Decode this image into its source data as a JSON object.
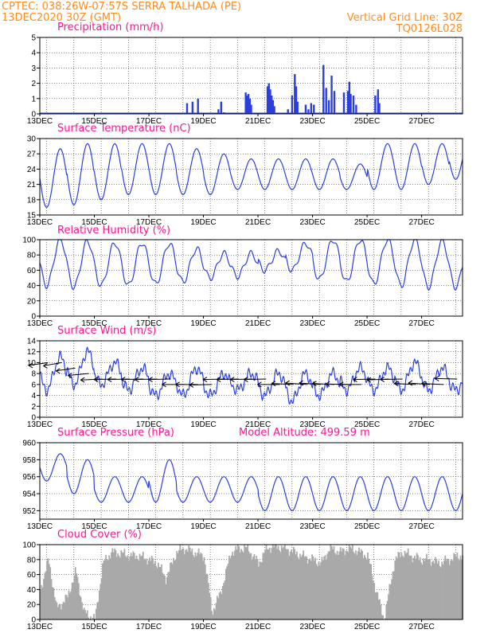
{
  "header": {
    "line1_left": "CPTEC:   038:26W-07:57S   SERRA TALHADA (PE)",
    "line2_left": "13DEC2020 30Z (GMT)",
    "line2_right": "Vertical Grid Line: 30Z",
    "line3_right": "TQ0126L028"
  },
  "colors": {
    "header": "#ff8c1a",
    "title": "#ff1493",
    "series": "#2b3fe0",
    "cloud": "#a9a9a9",
    "axis": "#000000"
  },
  "x_axis": {
    "tick_labels": [
      "13DEC",
      "15DEC",
      "17DEC",
      "19DEC",
      "21DEC",
      "23DEC",
      "25DEC",
      "27DEC"
    ],
    "tick_days": [
      0,
      2,
      4,
      6,
      8,
      10,
      12,
      14
    ],
    "range_days": [
      0,
      15.5
    ]
  },
  "chart_data": [
    {
      "id": "precip",
      "type": "bar",
      "title": "Precipitation (mm/h)",
      "ylim": [
        0,
        5
      ],
      "yticks": [
        0,
        1,
        2,
        3,
        4,
        5
      ],
      "x": [
        5.4,
        5.6,
        5.8,
        6.55,
        6.65,
        6.75,
        7.55,
        7.6,
        7.65,
        7.7,
        7.75,
        8.35,
        8.4,
        8.45,
        8.5,
        8.55,
        8.6,
        9.1,
        9.25,
        9.35,
        9.4,
        9.45,
        9.75,
        9.85,
        9.95,
        10.05,
        10.4,
        10.5,
        10.6,
        10.7,
        10.8,
        11.15,
        11.3,
        11.35,
        11.4,
        11.5,
        11.6,
        12.3,
        12.4,
        12.45
      ],
      "values": [
        0.7,
        0.8,
        1.0,
        0.3,
        0.8,
        0.1,
        1.4,
        1.2,
        1.3,
        1.0,
        0.6,
        1.8,
        2.0,
        1.6,
        1.2,
        0.9,
        0.5,
        0.3,
        1.2,
        2.6,
        1.8,
        0.8,
        0.6,
        0.3,
        0.7,
        0.6,
        3.2,
        1.7,
        0.9,
        2.5,
        1.5,
        1.4,
        1.5,
        2.1,
        1.3,
        1.2,
        0.6,
        1.2,
        1.6,
        0.7
      ]
    },
    {
      "id": "temp",
      "type": "line",
      "title": "Surface Temperature (nC)",
      "ylim": [
        15,
        30
      ],
      "yticks": [
        15,
        18,
        21,
        24,
        27,
        30
      ],
      "series": [
        {
          "daily_max": [
            28,
            29,
            29,
            29,
            29,
            28,
            27,
            26,
            26,
            26,
            26,
            25,
            29,
            29,
            29,
            30
          ],
          "daily_min": [
            16.5,
            17,
            18,
            19,
            19,
            19,
            19,
            20,
            20,
            20,
            20,
            20,
            20,
            20,
            21,
            22
          ]
        }
      ]
    },
    {
      "id": "rh",
      "type": "line",
      "title": "Relative Humidity (%)",
      "ylim": [
        0,
        100
      ],
      "yticks": [
        0,
        20,
        40,
        60,
        80,
        100
      ],
      "series": [
        {
          "daily_max": [
            100,
            98,
            96,
            96,
            95,
            88,
            82,
            82,
            85,
            95,
            100,
            100,
            100,
            100,
            98,
            95
          ],
          "daily_min": [
            40,
            38,
            40,
            40,
            42,
            45,
            50,
            52,
            60,
            60,
            48,
            45,
            42,
            40,
            38,
            38
          ]
        }
      ]
    },
    {
      "id": "wind",
      "type": "line",
      "title": "Surface Wind (m/s)",
      "ylim": [
        0,
        14
      ],
      "yticks": [
        0,
        2,
        4,
        6,
        8,
        10,
        12,
        14
      ],
      "series": [
        {
          "daily_max": [
            11,
            12,
            10,
            9,
            8,
            9,
            8,
            8,
            8,
            8,
            8,
            9,
            9,
            10,
            9,
            8
          ],
          "daily_min": [
            5,
            6,
            6,
            5,
            4,
            4,
            4,
            5,
            4,
            3,
            4,
            5,
            5,
            5,
            5,
            5
          ]
        }
      ],
      "wind_vectors": {
        "x": [
          0.3,
          0.8,
          1.3,
          1.8,
          2.3,
          2.8,
          3.3,
          3.8,
          4.3,
          4.8,
          5.3,
          5.8,
          6.3,
          6.8,
          7.3,
          7.8,
          8.3,
          8.8,
          9.3,
          9.8,
          10.3,
          10.8,
          11.3,
          11.8,
          12.3,
          12.8,
          13.3,
          13.8,
          14.3,
          14.8,
          15.3
        ],
        "speed": [
          10,
          10,
          9,
          8,
          7,
          7,
          7,
          7,
          7,
          7,
          6,
          6,
          6,
          7,
          7,
          7,
          7,
          6,
          6,
          6,
          6,
          6,
          6,
          6,
          7,
          7,
          7,
          6,
          6,
          6,
          7
        ],
        "dir_deg": [
          120,
          125,
          120,
          110,
          100,
          95,
          95,
          95,
          95,
          95,
          90,
          90,
          95,
          95,
          95,
          95,
          95,
          90,
          80,
          75,
          75,
          80,
          85,
          90,
          95,
          100,
          95,
          80,
          75,
          80,
          85
        ]
      }
    },
    {
      "id": "pres",
      "type": "line",
      "title": "Surface Pressure (hPa)",
      "annotation": "Model Altitude: 499.59 m",
      "ylim": [
        951,
        960
      ],
      "yticks": [
        952,
        954,
        956,
        958,
        960
      ],
      "series": [
        {
          "daily_max": [
            958.7,
            958,
            956,
            956,
            958,
            956,
            956,
            956,
            956,
            956,
            956,
            956,
            956,
            956,
            956,
            956
          ],
          "daily_min": [
            955.5,
            954,
            953,
            953,
            953,
            953,
            953,
            953,
            952,
            952,
            952,
            952,
            952,
            952,
            952,
            952
          ]
        }
      ]
    },
    {
      "id": "cloud",
      "type": "area",
      "title": "Cloud Cover (%)",
      "ylim": [
        0,
        100
      ],
      "yticks": [
        0,
        20,
        40,
        60,
        80,
        100
      ],
      "x": [
        0,
        0.3,
        0.6,
        1.0,
        1.3,
        1.6,
        2.0,
        2.3,
        2.6,
        3.0,
        3.3,
        3.6,
        4.0,
        4.3,
        4.6,
        5.0,
        5.3,
        5.6,
        6.0,
        6.3,
        6.6,
        7.0,
        7.3,
        7.6,
        8.0,
        8.3,
        8.6,
        9.0,
        9.3,
        9.6,
        10.0,
        10.3,
        10.6,
        11.0,
        11.3,
        11.6,
        12.0,
        12.3,
        12.6,
        13.0,
        13.3,
        13.6,
        14.0,
        14.3,
        14.6,
        15.0,
        15.3,
        15.5
      ],
      "values": [
        40,
        80,
        15,
        30,
        65,
        10,
        0,
        75,
        90,
        88,
        85,
        85,
        80,
        75,
        55,
        90,
        95,
        90,
        85,
        10,
        35,
        90,
        95,
        95,
        75,
        95,
        98,
        95,
        90,
        85,
        80,
        75,
        95,
        90,
        95,
        92,
        85,
        40,
        0,
        80,
        90,
        85,
        80,
        80,
        75,
        80,
        85,
        85
      ]
    }
  ]
}
